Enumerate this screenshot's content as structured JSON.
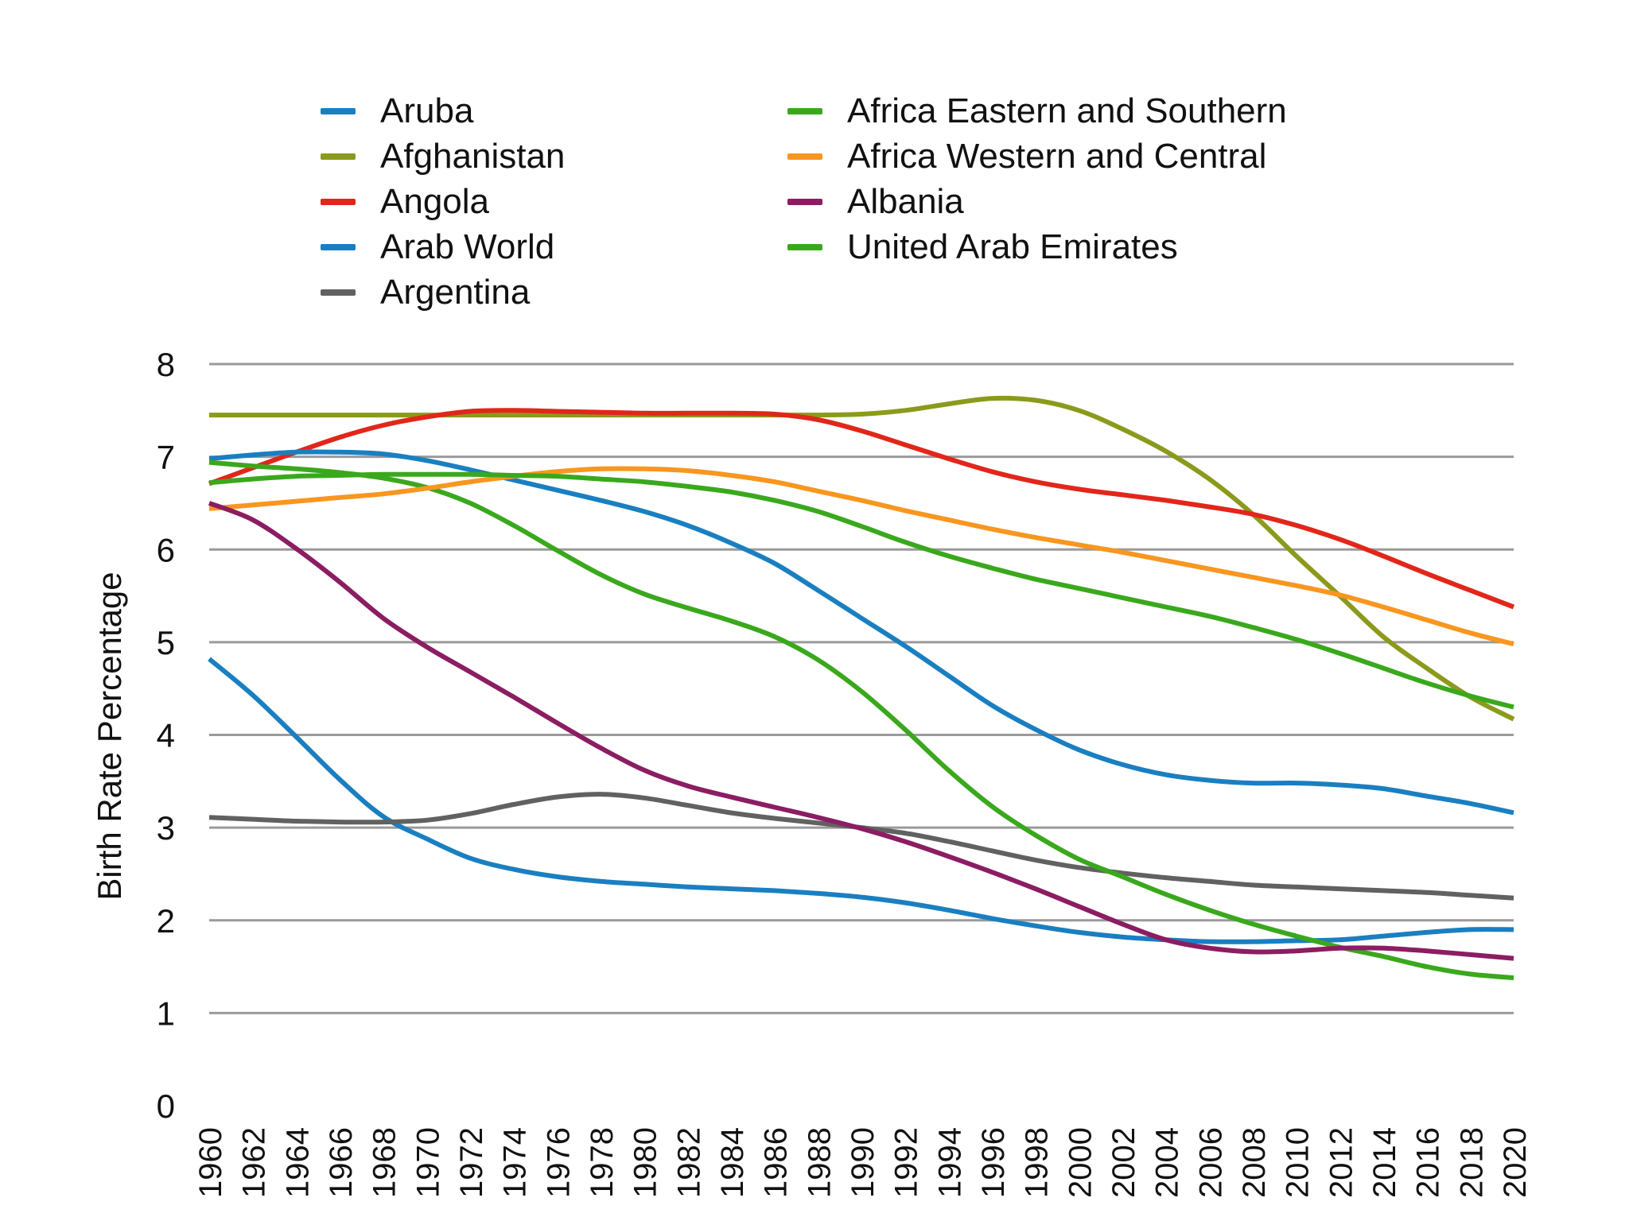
{
  "chart_data": {
    "type": "line",
    "title": "",
    "xlabel": "",
    "ylabel": "Birth Rate Percentage",
    "ylim": [
      0,
      8
    ],
    "yticks": [
      "0",
      "1",
      "2",
      "3",
      "4",
      "5",
      "6",
      "7",
      "8"
    ],
    "xticks": [
      "1960",
      "1962",
      "1964",
      "1966",
      "1968",
      "1970",
      "1972",
      "1974",
      "1976",
      "1978",
      "1980",
      "1982",
      "1984",
      "1986",
      "1988",
      "1990",
      "1992",
      "1994",
      "1996",
      "1998",
      "2000",
      "2002",
      "2004",
      "2006",
      "2008",
      "2010",
      "2012",
      "2014",
      "2016",
      "2018",
      "2020"
    ],
    "grid": true,
    "legend_position": "top",
    "x": [
      1960,
      1962,
      1964,
      1966,
      1968,
      1970,
      1972,
      1974,
      1976,
      1978,
      1980,
      1982,
      1984,
      1986,
      1988,
      1990,
      1992,
      1994,
      1996,
      1998,
      2000,
      2002,
      2004,
      2006,
      2008,
      2010,
      2012,
      2014,
      2016,
      2018,
      2020
    ],
    "series": [
      {
        "name": "Aruba",
        "color": "#1a7fc1",
        "values": [
          4.82,
          4.43,
          3.98,
          3.52,
          3.12,
          2.88,
          2.67,
          2.55,
          2.47,
          2.42,
          2.39,
          2.36,
          2.34,
          2.32,
          2.29,
          2.25,
          2.19,
          2.11,
          2.02,
          1.94,
          1.87,
          1.82,
          1.79,
          1.77,
          1.77,
          1.78,
          1.79,
          1.83,
          1.87,
          1.9,
          1.9
        ]
      },
      {
        "name": "Afghanistan",
        "color": "#8c9a1c",
        "values": [
          7.45,
          7.45,
          7.45,
          7.45,
          7.45,
          7.45,
          7.45,
          7.45,
          7.45,
          7.45,
          7.45,
          7.45,
          7.45,
          7.45,
          7.45,
          7.46,
          7.5,
          7.57,
          7.63,
          7.61,
          7.5,
          7.3,
          7.06,
          6.76,
          6.38,
          5.93,
          5.5,
          5.06,
          4.72,
          4.41,
          4.17
        ]
      },
      {
        "name": "Angola",
        "color": "#e2261a",
        "values": [
          6.71,
          6.88,
          7.05,
          7.21,
          7.34,
          7.43,
          7.49,
          7.5,
          7.49,
          7.48,
          7.47,
          7.47,
          7.47,
          7.46,
          7.4,
          7.28,
          7.13,
          6.98,
          6.84,
          6.73,
          6.65,
          6.59,
          6.53,
          6.46,
          6.38,
          6.26,
          6.11,
          5.93,
          5.74,
          5.56,
          5.38
        ]
      },
      {
        "name": "Arab World",
        "color": "#1a7fc1",
        "values": [
          6.98,
          7.02,
          7.05,
          7.05,
          7.03,
          6.96,
          6.86,
          6.75,
          6.64,
          6.53,
          6.41,
          6.26,
          6.07,
          5.85,
          5.56,
          5.26,
          4.96,
          4.64,
          4.32,
          4.06,
          3.84,
          3.68,
          3.57,
          3.51,
          3.48,
          3.48,
          3.46,
          3.42,
          3.34,
          3.26,
          3.16
        ]
      },
      {
        "name": "Argentina",
        "color": "#616161",
        "values": [
          3.11,
          3.09,
          3.07,
          3.06,
          3.06,
          3.08,
          3.15,
          3.25,
          3.33,
          3.36,
          3.32,
          3.24,
          3.16,
          3.1,
          3.05,
          3.0,
          2.94,
          2.85,
          2.75,
          2.65,
          2.57,
          2.51,
          2.46,
          2.42,
          2.38,
          2.36,
          2.34,
          2.32,
          2.3,
          2.27,
          2.24
        ]
      },
      {
        "name": "Africa Eastern and Southern",
        "color": "#3aa81d",
        "values": [
          6.94,
          6.9,
          6.87,
          6.83,
          6.77,
          6.67,
          6.5,
          6.26,
          5.99,
          5.73,
          5.52,
          5.37,
          5.23,
          5.06,
          4.81,
          4.47,
          4.06,
          3.62,
          3.23,
          2.92,
          2.66,
          2.47,
          2.28,
          2.11,
          1.96,
          1.83,
          1.71,
          1.61,
          1.5,
          1.42,
          1.38
        ]
      },
      {
        "name": "Africa Western and Central",
        "color": "#f8961f",
        "values": [
          6.44,
          6.48,
          6.52,
          6.56,
          6.6,
          6.66,
          6.73,
          6.79,
          6.84,
          6.87,
          6.87,
          6.85,
          6.8,
          6.73,
          6.63,
          6.53,
          6.42,
          6.32,
          6.22,
          6.13,
          6.05,
          5.97,
          5.88,
          5.79,
          5.7,
          5.61,
          5.51,
          5.38,
          5.24,
          5.1,
          4.98
        ]
      },
      {
        "name": "Albania",
        "color": "#8b1d62",
        "values": [
          6.5,
          6.32,
          6.01,
          5.65,
          5.26,
          4.95,
          4.68,
          4.41,
          4.13,
          3.86,
          3.62,
          3.45,
          3.33,
          3.22,
          3.11,
          2.99,
          2.85,
          2.69,
          2.52,
          2.34,
          2.15,
          1.96,
          1.79,
          1.7,
          1.66,
          1.67,
          1.7,
          1.7,
          1.67,
          1.63,
          1.59
        ]
      },
      {
        "name": "United Arab Emirates",
        "color": "#3aa81d",
        "values": [
          6.72,
          6.76,
          6.79,
          6.8,
          6.81,
          6.81,
          6.81,
          6.8,
          6.79,
          6.76,
          6.73,
          6.68,
          6.62,
          6.53,
          6.41,
          6.25,
          6.08,
          5.93,
          5.8,
          5.68,
          5.58,
          5.48,
          5.38,
          5.28,
          5.16,
          5.03,
          4.88,
          4.72,
          4.56,
          4.42,
          4.3
        ]
      }
    ]
  }
}
